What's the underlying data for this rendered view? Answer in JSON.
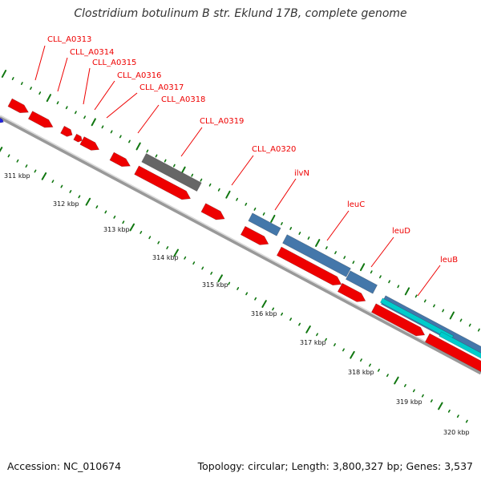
{
  "title": "Clostridium botulinum B str. Eklund 17B, complete genome",
  "footer": {
    "accession": "Accession: NC_010674",
    "summary": "Topology: circular; Length: 3,800,327 bp; Genes: 3,537"
  },
  "colors": {
    "gene_red": "#ee0000",
    "label_red": "#ee0000",
    "gene_gray": "#666666",
    "gene_blue": "#4477aa",
    "gene_cyan": "#00cccc",
    "tick_green": "#117711",
    "backbone": "#999999"
  },
  "kbp_labels": [
    "311 kbp",
    "312 kbp",
    "313 kbp",
    "314 kbp",
    "315 kbp",
    "316 kbp",
    "317 kbp",
    "318 kbp",
    "319 kbp",
    "320 kbp"
  ],
  "gene_labels": [
    "CLL_A0313",
    "CLL_A0314",
    "CLL_A0315",
    "CLL_A0316",
    "CLL_A0317",
    "CLL_A0318",
    "CLL_A0319",
    "CLL_A0320",
    "ilvN",
    "leuC",
    "leuD",
    "leuB"
  ]
}
